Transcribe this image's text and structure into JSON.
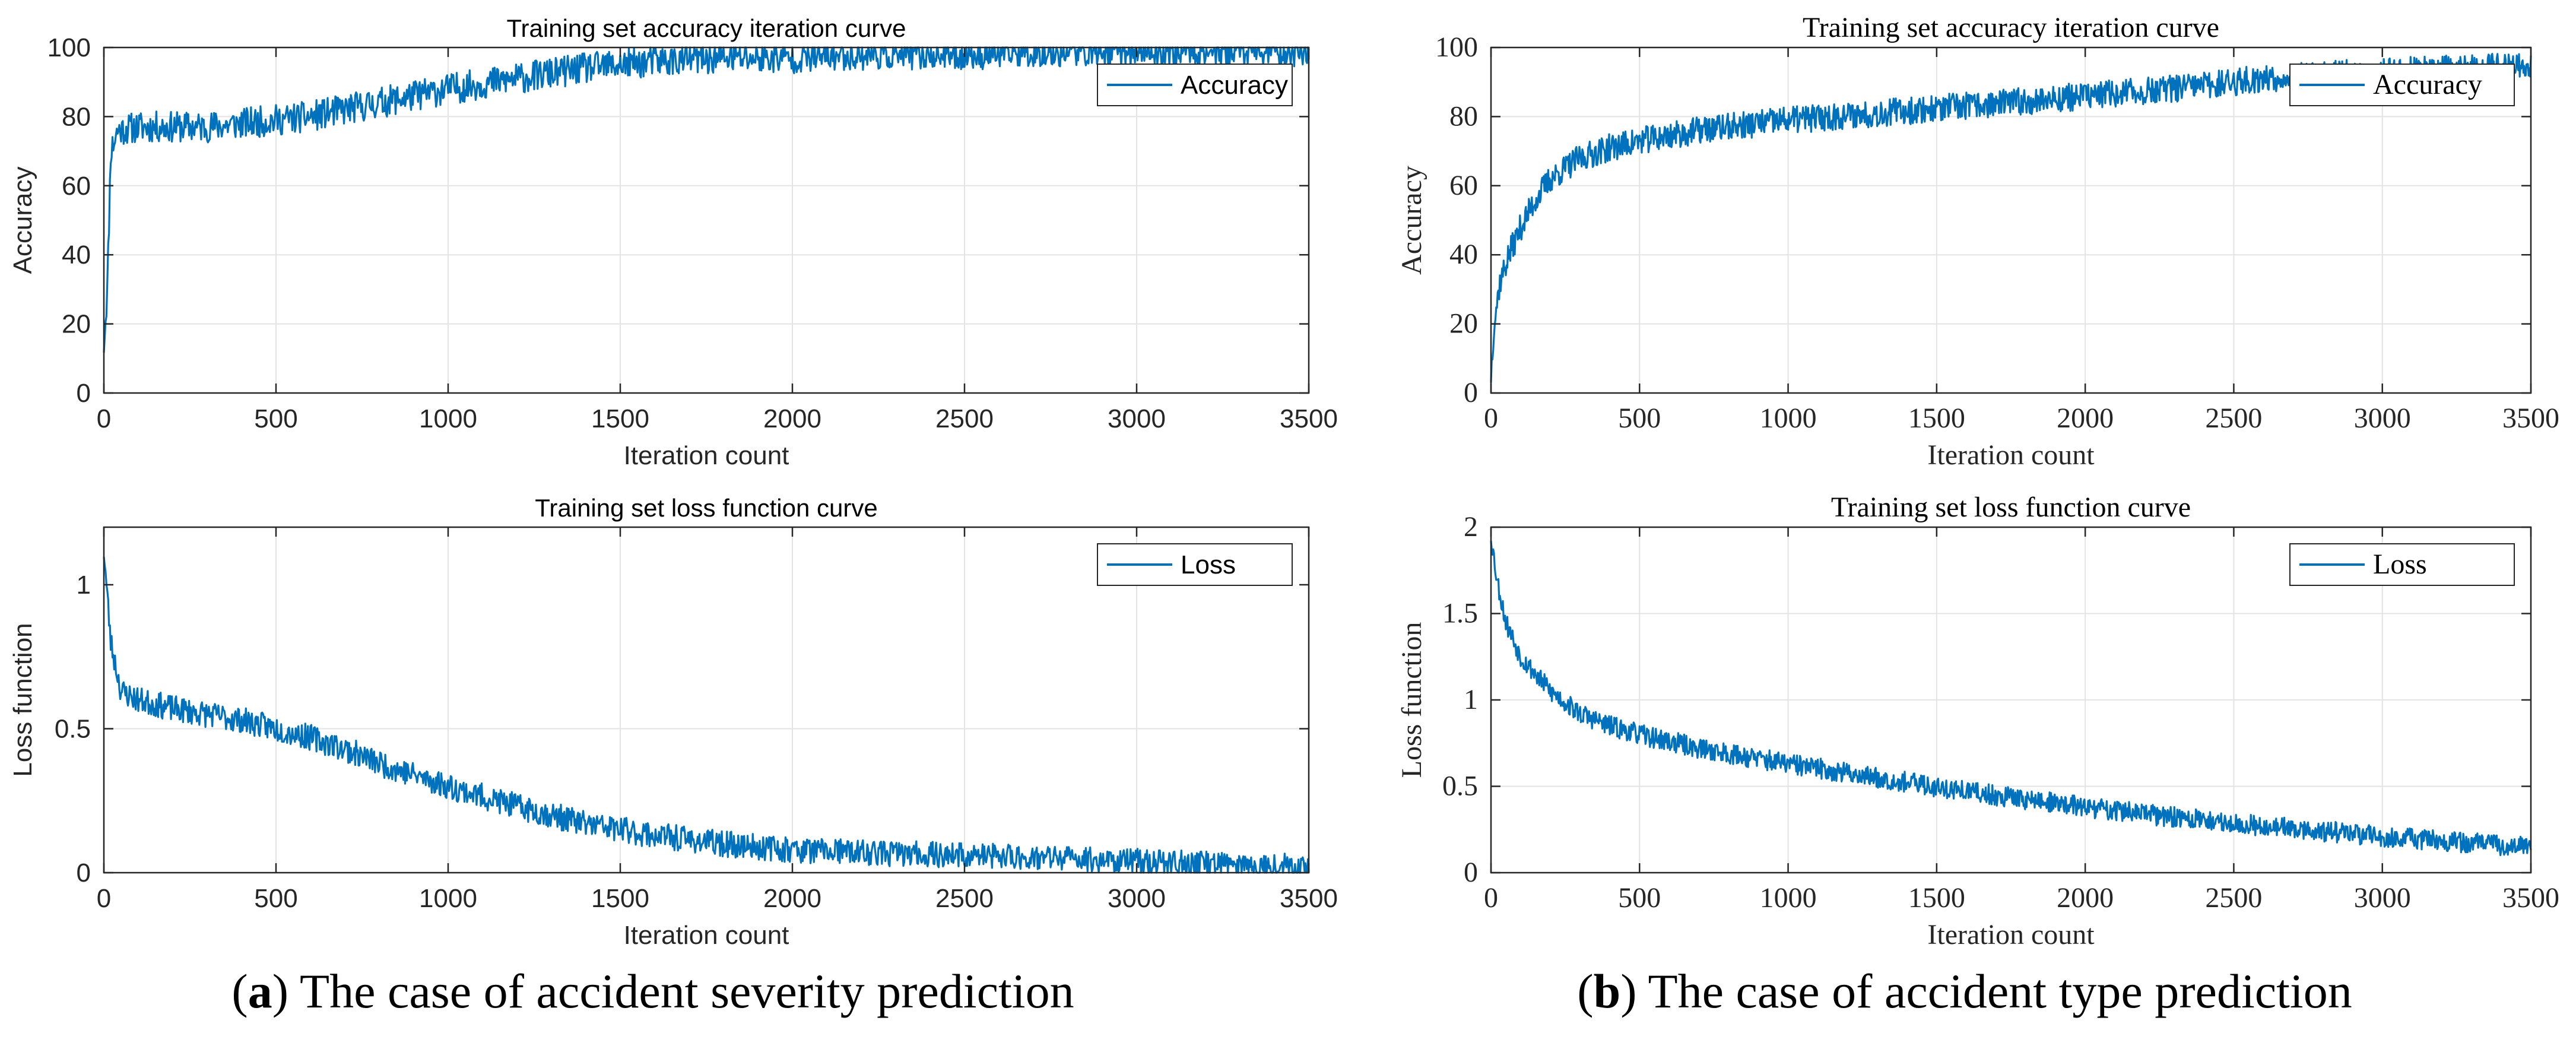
{
  "chart_data": [
    {
      "type": "line",
      "panel": "a-top",
      "title": "Training set accuracy iteration curve",
      "xlabel": "Iteration count",
      "ylabel": "Accuracy",
      "xlim": [
        0,
        3500
      ],
      "ylim": [
        0,
        100
      ],
      "xticks": [
        0,
        500,
        1000,
        1500,
        2000,
        2500,
        3000,
        3500
      ],
      "yticks": [
        0,
        20,
        40,
        60,
        80,
        100
      ],
      "xtick_labels": [
        "0",
        "500",
        "1000",
        "1500",
        "2000",
        "2500",
        "3000",
        "3500"
      ],
      "ytick_labels": [
        "0",
        "20",
        "40",
        "60",
        "80",
        "100"
      ],
      "grid": true,
      "legend_position": "top-right",
      "series": [
        {
          "name": "Accuracy",
          "color": "#0072BD",
          "x": [
            0,
            10,
            20,
            40,
            100,
            200,
            300,
            400,
            500,
            600,
            700,
            800,
            900,
            1000,
            1200,
            1400,
            1600,
            1800,
            2000,
            2200,
            2500,
            2800,
            3000,
            3200,
            3500
          ],
          "values": [
            14,
            30,
            70,
            76,
            77,
            77,
            77,
            78,
            79,
            80,
            82,
            84,
            86,
            88,
            91,
            94,
            96,
            97,
            97,
            98,
            98,
            99,
            99,
            99,
            99
          ],
          "noise": 4.5
        }
      ]
    },
    {
      "type": "line",
      "panel": "a-bottom",
      "title": "Training set loss function curve",
      "xlabel": "Iteration count",
      "ylabel": "Loss function",
      "xlim": [
        0,
        3500
      ],
      "ylim": [
        0,
        1.2
      ],
      "xticks": [
        0,
        500,
        1000,
        1500,
        2000,
        2500,
        3000,
        3500
      ],
      "yticks": [
        0,
        0.5,
        1
      ],
      "xtick_labels": [
        "0",
        "500",
        "1000",
        "1500",
        "2000",
        "2500",
        "3000",
        "3500"
      ],
      "ytick_labels": [
        "0",
        "0.5",
        "1"
      ],
      "grid": true,
      "legend_position": "top-right",
      "series": [
        {
          "name": "Loss",
          "color": "#0072BD",
          "x": [
            0,
            20,
            50,
            100,
            200,
            300,
            400,
            500,
            600,
            700,
            800,
            1000,
            1200,
            1400,
            1600,
            1800,
            2000,
            2200,
            2500,
            2800,
            3000,
            3200,
            3500
          ],
          "values": [
            1.12,
            0.8,
            0.63,
            0.6,
            0.57,
            0.55,
            0.53,
            0.5,
            0.47,
            0.43,
            0.38,
            0.3,
            0.23,
            0.17,
            0.13,
            0.1,
            0.08,
            0.07,
            0.06,
            0.05,
            0.04,
            0.03,
            0.02
          ],
          "noise": 0.045
        }
      ]
    },
    {
      "type": "line",
      "panel": "b-top",
      "title": "Training set accuracy iteration curve",
      "xlabel": "Iteration count",
      "ylabel": "Accuracy",
      "xlim": [
        0,
        3500
      ],
      "ylim": [
        0,
        100
      ],
      "xticks": [
        0,
        500,
        1000,
        1500,
        2000,
        2500,
        3000,
        3500
      ],
      "yticks": [
        0,
        20,
        40,
        60,
        80,
        100
      ],
      "xtick_labels": [
        "0",
        "500",
        "1000",
        "1500",
        "2000",
        "2500",
        "3000",
        "3500"
      ],
      "ytick_labels": [
        "0",
        "20",
        "40",
        "60",
        "80",
        "100"
      ],
      "grid": true,
      "legend_position": "top-right",
      "series": [
        {
          "name": "Accuracy",
          "color": "#0072BD",
          "x": [
            0,
            10,
            30,
            60,
            100,
            150,
            200,
            300,
            400,
            500,
            700,
            1000,
            1300,
            1600,
            2000,
            2300,
            2600,
            3000,
            3300,
            3500
          ],
          "values": [
            5,
            20,
            32,
            40,
            48,
            56,
            62,
            68,
            71,
            73,
            76,
            79,
            81,
            83,
            86,
            88,
            91,
            93,
            94,
            95
          ],
          "noise": 4
        }
      ]
    },
    {
      "type": "line",
      "panel": "b-bottom",
      "title": "Training set loss function curve",
      "xlabel": "Iteration count",
      "ylabel": "Loss function",
      "xlim": [
        0,
        3500
      ],
      "ylim": [
        0,
        2
      ],
      "xticks": [
        0,
        500,
        1000,
        1500,
        2000,
        2500,
        3000,
        3500
      ],
      "yticks": [
        0,
        0.5,
        1,
        1.5,
        2
      ],
      "xtick_labels": [
        "0",
        "500",
        "1000",
        "1500",
        "2000",
        "2500",
        "3000",
        "3500"
      ],
      "ytick_labels": [
        "0",
        "0.5",
        "1",
        "1.5",
        "2"
      ],
      "grid": true,
      "legend_position": "top-right",
      "series": [
        {
          "name": "Loss",
          "color": "#0072BD",
          "x": [
            0,
            20,
            50,
            100,
            200,
            300,
            400,
            500,
            700,
            1000,
            1300,
            1600,
            2000,
            2300,
            2600,
            3000,
            3300,
            3500
          ],
          "values": [
            1.95,
            1.7,
            1.45,
            1.25,
            1.05,
            0.92,
            0.85,
            0.8,
            0.72,
            0.63,
            0.55,
            0.47,
            0.38,
            0.32,
            0.27,
            0.21,
            0.17,
            0.15
          ],
          "noise": 0.06
        }
      ]
    }
  ],
  "captions": {
    "a": {
      "letter": "a",
      "text": " The case of accident severity prediction"
    },
    "b": {
      "letter": "b",
      "text": " The case of accident type prediction"
    }
  }
}
